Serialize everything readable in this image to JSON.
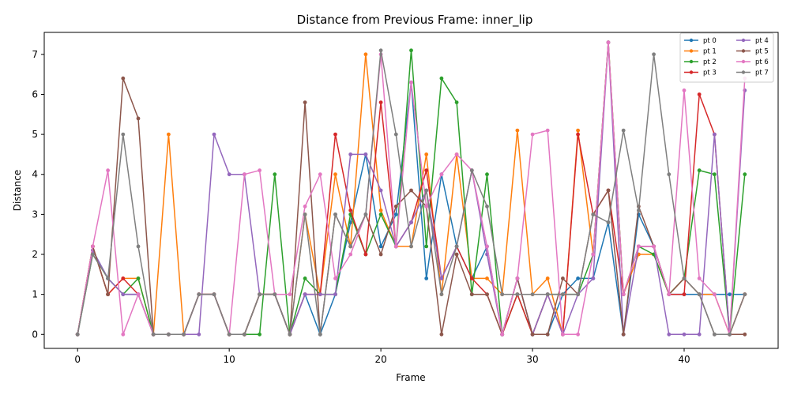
{
  "chart_data": {
    "type": "line",
    "title": "Distance from Previous Frame: inner_lip",
    "xlabel": "Frame",
    "ylabel": "Distance",
    "xlim": [
      -2.2,
      46.2
    ],
    "ylim": [
      -0.35,
      7.55
    ],
    "xticks": [
      0,
      10,
      20,
      30,
      40
    ],
    "yticks": [
      0,
      1,
      2,
      3,
      4,
      5,
      6,
      7
    ],
    "grid": false,
    "legend_position": "top-right",
    "legend_columns": 2,
    "x": [
      0,
      1,
      2,
      3,
      4,
      5,
      6,
      7,
      8,
      9,
      10,
      11,
      12,
      13,
      14,
      15,
      16,
      17,
      18,
      19,
      20,
      21,
      22,
      23,
      24,
      25,
      26,
      27,
      28,
      29,
      30,
      31,
      32,
      33,
      34,
      35,
      36,
      37,
      38,
      39,
      40,
      41,
      42,
      43,
      44
    ],
    "series": [
      {
        "name": "pt 0",
        "color": "#1f77b4",
        "values": [
          0,
          2.1,
          1.4,
          1.0,
          1.0,
          0,
          0,
          0,
          1.0,
          1.0,
          0,
          0,
          1.0,
          1.0,
          0,
          1.0,
          0,
          1.0,
          2.8,
          4.5,
          2.2,
          3.0,
          6.3,
          1.4,
          4.0,
          2.2,
          1.4,
          2.2,
          0,
          1.4,
          0,
          0,
          1.0,
          1.4,
          1.4,
          2.8,
          0,
          3.0,
          2.2,
          1.0,
          1.0,
          1.0,
          1.0,
          1.0,
          1.0
        ]
      },
      {
        "name": "pt 1",
        "color": "#ff7f0e",
        "values": [
          0,
          2.2,
          1.0,
          1.4,
          1.4,
          0,
          5.0,
          0,
          1.0,
          1.0,
          0,
          0,
          1.0,
          1.0,
          0,
          3.0,
          1.0,
          4.0,
          2.2,
          7.0,
          3.1,
          2.2,
          2.2,
          4.5,
          1.0,
          4.5,
          1.4,
          1.4,
          1.0,
          5.1,
          1.0,
          1.4,
          0,
          5.1,
          2.0,
          7.3,
          1.0,
          2.0,
          2.0,
          1.0,
          1.4,
          1.0,
          1.0,
          0,
          1.0
        ]
      },
      {
        "name": "pt 2",
        "color": "#2ca02c",
        "values": [
          0,
          2.0,
          1.4,
          1.0,
          1.4,
          0,
          0,
          0,
          1.0,
          1.0,
          0,
          0,
          0,
          4.0,
          0,
          1.4,
          1.0,
          1.0,
          3.0,
          2.0,
          3.0,
          2.2,
          7.1,
          2.2,
          6.4,
          5.8,
          1.0,
          4.0,
          0,
          1.0,
          0,
          1.0,
          1.0,
          1.0,
          2.0,
          7.3,
          1.0,
          2.2,
          2.0,
          1.0,
          1.4,
          4.1,
          4.0,
          0,
          4.0
        ]
      },
      {
        "name": "pt 3",
        "color": "#d62728",
        "values": [
          0,
          2.2,
          1.0,
          1.4,
          1.0,
          0,
          0,
          0,
          1.0,
          1.0,
          0,
          0,
          1.0,
          1.0,
          0,
          1.0,
          1.0,
          5.0,
          3.1,
          2.0,
          5.8,
          2.2,
          2.8,
          4.1,
          1.4,
          2.2,
          1.4,
          1.0,
          0,
          1.0,
          0,
          1.0,
          0,
          5.0,
          3.0,
          3.6,
          1.0,
          2.2,
          2.2,
          1.0,
          1.0,
          6.0,
          5.0,
          0,
          1.0
        ]
      },
      {
        "name": "pt 4",
        "color": "#9467bd",
        "values": [
          0,
          2.1,
          1.4,
          1.0,
          1.0,
          0,
          0,
          0,
          0,
          5.0,
          4.0,
          4.0,
          1.0,
          1.0,
          0,
          1.0,
          1.0,
          1.0,
          4.5,
          4.5,
          3.6,
          2.2,
          2.8,
          3.6,
          1.4,
          2.2,
          4.1,
          2.0,
          0,
          1.4,
          0,
          1.0,
          0,
          1.0,
          1.4,
          7.3,
          0,
          2.2,
          2.2,
          0,
          0,
          0,
          5.0,
          0,
          6.1
        ]
      },
      {
        "name": "pt 5",
        "color": "#8c564b",
        "values": [
          0,
          2.2,
          1.0,
          6.4,
          5.4,
          0,
          0,
          0,
          1.0,
          1.0,
          0,
          0,
          1.0,
          1.0,
          0,
          5.8,
          0,
          3.0,
          2.2,
          3.0,
          2.0,
          3.2,
          3.6,
          3.2,
          0,
          2.0,
          1.0,
          1.0,
          0,
          1.4,
          0,
          0,
          1.4,
          1.0,
          3.0,
          3.6,
          0,
          3.2,
          2.2,
          1.0,
          1.4,
          1.0,
          0,
          0,
          0
        ]
      },
      {
        "name": "pt 6",
        "color": "#e377c2",
        "values": [
          0,
          2.2,
          4.1,
          0,
          1.0,
          0,
          0,
          0,
          1.0,
          1.0,
          0,
          4.0,
          4.1,
          1.0,
          1.0,
          3.2,
          4.0,
          1.4,
          2.0,
          3.0,
          7.0,
          2.2,
          6.3,
          3.2,
          4.0,
          4.5,
          4.1,
          2.2,
          0,
          1.4,
          5.0,
          5.1,
          0,
          0,
          2.0,
          7.3,
          1.0,
          2.2,
          2.2,
          1.0,
          6.1,
          1.4,
          1.0,
          0,
          6.4
        ]
      },
      {
        "name": "pt 7",
        "color": "#7f7f7f",
        "values": [
          0,
          2.0,
          1.4,
          5.0,
          2.2,
          0,
          0,
          0,
          1.0,
          1.0,
          0,
          0,
          1.0,
          1.0,
          0,
          3.0,
          0,
          3.0,
          2.2,
          3.0,
          7.1,
          5.0,
          2.2,
          3.6,
          1.0,
          2.2,
          4.1,
          3.2,
          1.0,
          1.0,
          1.0,
          1.0,
          1.0,
          1.0,
          3.0,
          2.8,
          5.1,
          3.1,
          7.0,
          4.0,
          1.4,
          1.0,
          0,
          0,
          1.0
        ]
      }
    ]
  }
}
